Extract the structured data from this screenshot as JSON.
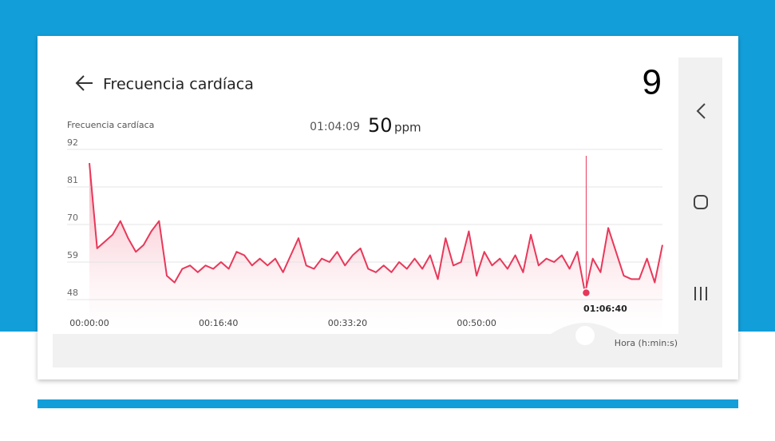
{
  "screen": {
    "title": "Frecuencia cardíaca",
    "page_number": "9"
  },
  "chart_data": {
    "type": "line",
    "y_label": "Frecuencia cardíaca",
    "x_label": "Hora (h:min:s)",
    "selected": {
      "time": {
        "value": 3849,
        "label": "01:04:09"
      },
      "value": 50,
      "unit": "ppm",
      "axis_label": "01:06:40"
    },
    "color": "#e8385a",
    "x": [
      0,
      60,
      120,
      180,
      240,
      300,
      360,
      420,
      480,
      540,
      600,
      660,
      720,
      780,
      840,
      900,
      960,
      1020,
      1080,
      1140,
      1200,
      1260,
      1320,
      1380,
      1440,
      1500,
      1560,
      1620,
      1680,
      1740,
      1800,
      1860,
      1920,
      1980,
      2040,
      2100,
      2160,
      2220,
      2280,
      2340,
      2400,
      2460,
      2520,
      2580,
      2640,
      2700,
      2760,
      2820,
      2880,
      2940,
      3000,
      3060,
      3120,
      3180,
      3240,
      3300,
      3360,
      3420,
      3480,
      3540,
      3600,
      3660,
      3720,
      3780,
      3840,
      3900,
      3960,
      4020,
      4080,
      4140,
      4200,
      4260,
      4320,
      4380,
      4440
    ],
    "values": [
      88,
      63,
      65,
      67,
      71,
      66,
      62,
      64,
      68,
      71,
      55,
      53,
      57,
      58,
      56,
      58,
      57,
      59,
      57,
      62,
      61,
      58,
      60,
      58,
      60,
      56,
      61,
      66,
      58,
      57,
      60,
      59,
      62,
      58,
      61,
      63,
      57,
      56,
      58,
      56,
      59,
      57,
      60,
      57,
      61,
      54,
      66,
      58,
      59,
      68,
      55,
      62,
      58,
      60,
      57,
      61,
      56,
      67,
      58,
      60,
      59,
      61,
      57,
      62,
      50,
      60,
      56,
      69,
      62,
      55,
      54,
      54,
      60,
      53,
      64
    ],
    "xlim": [
      0,
      4440
    ],
    "ylim": [
      48,
      92
    ],
    "xticks": [
      {
        "value": 0,
        "label": "00:00:00"
      },
      {
        "value": 1000,
        "label": "00:16:40"
      },
      {
        "value": 2000,
        "label": "00:33:20"
      },
      {
        "value": 3000,
        "label": "00:50:00"
      }
    ],
    "yticks": [
      48,
      59,
      70,
      81,
      92
    ],
    "grid": true
  }
}
